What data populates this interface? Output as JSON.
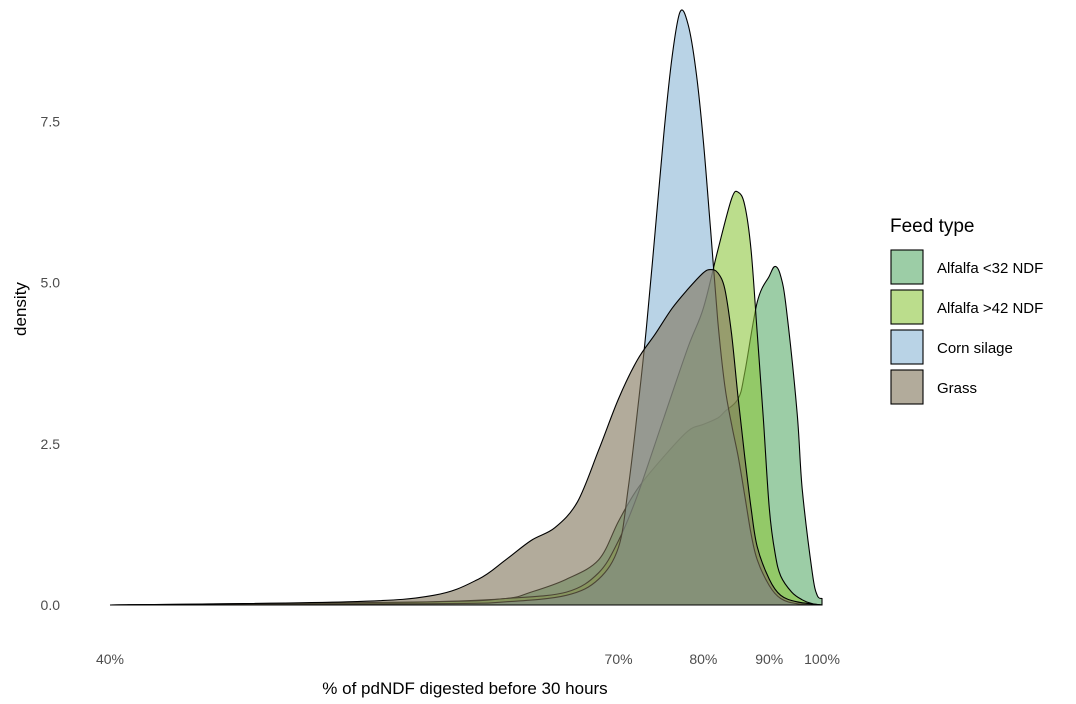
{
  "chart_data": {
    "type": "area",
    "subtype": "density",
    "xlabel": "% of pdNDF digested before 30 hours",
    "ylabel": "density",
    "x_scale": "reciprocal",
    "xlim": [
      40,
      100
    ],
    "ylim": [
      0,
      9.4
    ],
    "grid": false,
    "legend_position": "right",
    "x_ticks": [
      {
        "value": 40,
        "label": "40%"
      },
      {
        "value": 70,
        "label": "70%"
      },
      {
        "value": 80,
        "label": "80%"
      },
      {
        "value": 90,
        "label": "90%"
      },
      {
        "value": 100,
        "label": "100%"
      }
    ],
    "y_ticks": [
      {
        "value": 0,
        "label": "0.0"
      },
      {
        "value": 2.5,
        "label": "2.5"
      },
      {
        "value": 5,
        "label": "5.0"
      },
      {
        "value": 7.5,
        "label": "7.5"
      }
    ],
    "legend_title": "Feed type",
    "series": [
      {
        "name": "Alfalfa <32 NDF",
        "color": "#5aab6b",
        "x": [
          40,
          50,
          55,
          60,
          62,
          65,
          68,
          70,
          72,
          75,
          78,
          80,
          82,
          83,
          85,
          86,
          88,
          90,
          91,
          92,
          93,
          95,
          96,
          98,
          99,
          100
        ],
        "y": [
          0,
          0.02,
          0.05,
          0.1,
          0.2,
          0.4,
          0.7,
          1.3,
          1.8,
          2.3,
          2.7,
          2.8,
          2.9,
          3.0,
          3.2,
          3.6,
          4.7,
          5.1,
          5.25,
          5.1,
          4.6,
          3.0,
          1.8,
          0.5,
          0.15,
          0.1
        ]
      },
      {
        "name": "Alfalfa >42 NDF",
        "color": "#8ec63f",
        "x": [
          40,
          55,
          60,
          65,
          68,
          70,
          72,
          75,
          78,
          80,
          82,
          84,
          85,
          86,
          87,
          88,
          89,
          90,
          91,
          92,
          94,
          96,
          98,
          100
        ],
        "y": [
          0,
          0.05,
          0.1,
          0.2,
          0.5,
          1.0,
          1.7,
          2.9,
          4.0,
          4.6,
          5.5,
          6.3,
          6.4,
          6.2,
          5.5,
          4.2,
          2.9,
          1.5,
          0.8,
          0.45,
          0.2,
          0.08,
          0.02,
          0
        ]
      },
      {
        "name": "Corn silage",
        "color": "#8ab6d6",
        "x": [
          40,
          55,
          60,
          65,
          68,
          70,
          71,
          72,
          73,
          74,
          75,
          76,
          77,
          78,
          79,
          80,
          81,
          82,
          83,
          84,
          85,
          86,
          87,
          88,
          90,
          92,
          95,
          100
        ],
        "y": [
          0,
          0.02,
          0.05,
          0.15,
          0.4,
          0.9,
          1.8,
          3.0,
          4.3,
          5.8,
          7.3,
          8.5,
          9.2,
          9.0,
          8.3,
          7.2,
          5.8,
          4.4,
          3.4,
          2.8,
          2.3,
          1.7,
          1.1,
          0.7,
          0.3,
          0.1,
          0.02,
          0
        ]
      },
      {
        "name": "Grass",
        "color": "#7e7358",
        "x": [
          40,
          50,
          55,
          58,
          60,
          62,
          64,
          66,
          68,
          70,
          72,
          74,
          76,
          78,
          80,
          81,
          82,
          83,
          84,
          85,
          86,
          87,
          88,
          90,
          92,
          95,
          100
        ],
        "y": [
          0,
          0.05,
          0.15,
          0.4,
          0.7,
          1.0,
          1.2,
          1.6,
          2.4,
          3.2,
          3.8,
          4.2,
          4.6,
          4.9,
          5.15,
          5.2,
          5.15,
          4.9,
          4.2,
          3.2,
          2.3,
          1.5,
          0.9,
          0.4,
          0.15,
          0.05,
          0
        ]
      }
    ]
  }
}
